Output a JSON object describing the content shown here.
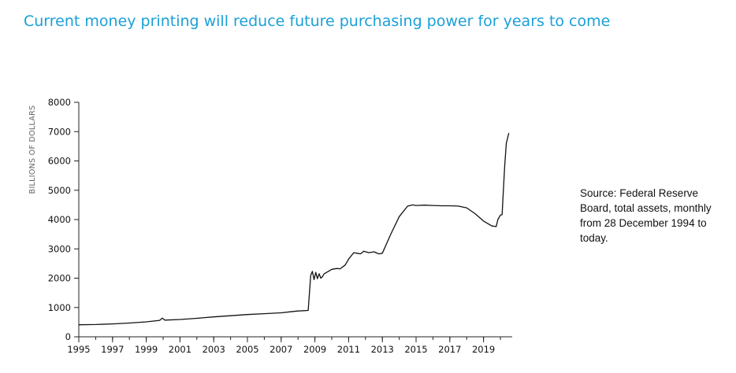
{
  "chart_data": {
    "type": "line",
    "title": "Current money printing will reduce future purchasing power for years to come",
    "xlabel": "",
    "ylabel": "BILLIONS OF DOLLARS",
    "xlim": [
      1995,
      2020.7
    ],
    "ylim": [
      0,
      8000
    ],
    "x_ticks": [
      "1995",
      "1997",
      "1999",
      "2001",
      "2003",
      "2005",
      "2007",
      "2009",
      "2011",
      "2013",
      "2015",
      "2017",
      "2019"
    ],
    "y_ticks": [
      "0",
      "1000",
      "2000",
      "3000",
      "4000",
      "5000",
      "6000",
      "7000",
      "8000"
    ],
    "series": [
      {
        "name": "Federal Reserve total assets",
        "x": [
          1995,
          1996,
          1997,
          1998,
          1999,
          1999.8,
          1999.95,
          2000.1,
          2001,
          2002,
          2003,
          2004,
          2005,
          2006,
          2007,
          2007.5,
          2008,
          2008.6,
          2008.75,
          2008.85,
          2008.95,
          2009.05,
          2009.15,
          2009.25,
          2009.35,
          2009.45,
          2009.55,
          2009.7,
          2009.85,
          2010,
          2010.3,
          2010.5,
          2010.8,
          2011,
          2011.3,
          2011.5,
          2011.7,
          2011.9,
          2012.2,
          2012.5,
          2012.8,
          2013,
          2013.5,
          2014,
          2014.5,
          2014.8,
          2015,
          2015.5,
          2016,
          2016.5,
          2017,
          2017.5,
          2018,
          2018.5,
          2019,
          2019.5,
          2019.75,
          2019.85,
          2020,
          2020.1,
          2020.15,
          2020.25,
          2020.35,
          2020.5
        ],
        "values": [
          410,
          420,
          440,
          470,
          510,
          560,
          640,
          570,
          590,
          630,
          680,
          720,
          760,
          790,
          820,
          850,
          880,
          900,
          2100,
          2230,
          1950,
          2200,
          1980,
          2150,
          2000,
          2050,
          2150,
          2200,
          2250,
          2300,
          2330,
          2320,
          2450,
          2650,
          2870,
          2850,
          2830,
          2920,
          2870,
          2900,
          2830,
          2850,
          3500,
          4100,
          4460,
          4500,
          4480,
          4490,
          4480,
          4470,
          4470,
          4460,
          4400,
          4200,
          3950,
          3780,
          3760,
          4000,
          4150,
          4170,
          4700,
          5800,
          6600,
          6950
        ]
      }
    ]
  },
  "source_note": "Source: Federal Reserve Board, total assets, monthly from 28 December 1994 to today."
}
